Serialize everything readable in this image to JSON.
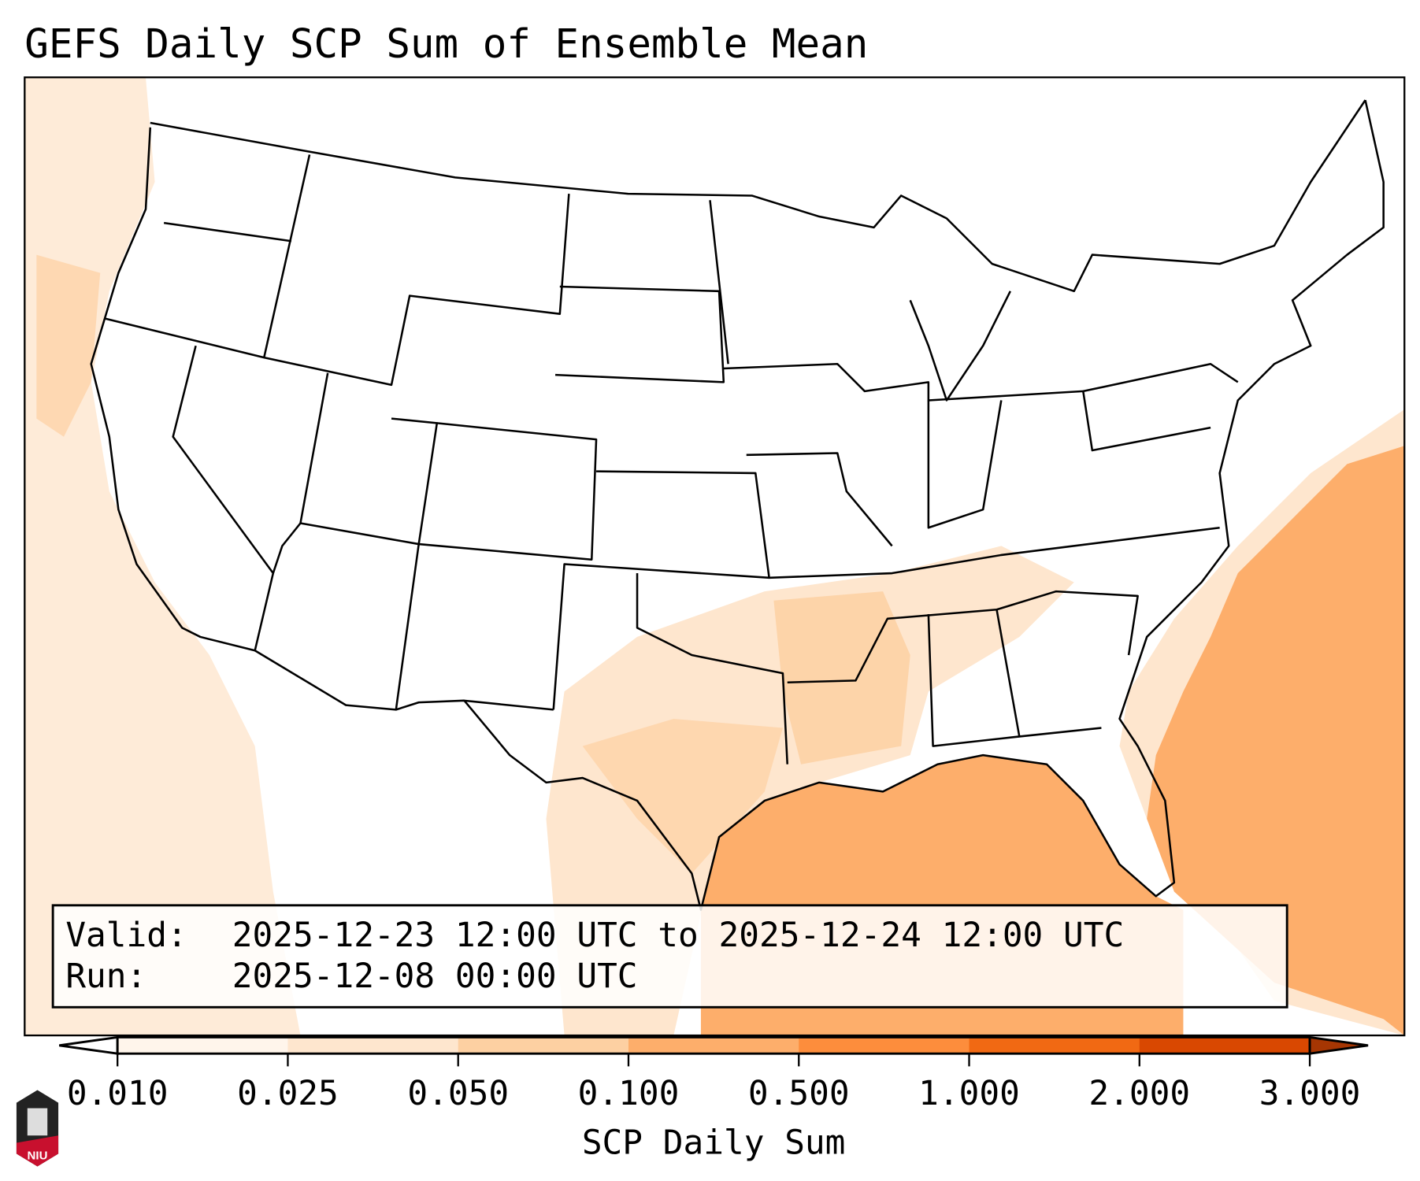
{
  "title": "GEFS Daily SCP Sum of Ensemble Mean",
  "info_box": {
    "valid_label": "Valid:",
    "valid_value": "2025-12-23 12:00 UTC to 2025-12-24 12:00 UTC",
    "run_label": "Run:",
    "run_value": "2025-12-08 00:00 UTC"
  },
  "colorbar": {
    "label": "SCP Daily Sum",
    "ticks": [
      "0.010",
      "0.025",
      "0.050",
      "0.100",
      "0.500",
      "1.000",
      "2.000",
      "3.000"
    ],
    "colors": [
      "#fff5eb",
      "#fee6ce",
      "#fdd0a2",
      "#fdae6b",
      "#fd8d3c",
      "#f16913",
      "#d94801"
    ],
    "under_color": "#ffffff",
    "over_color": "#a63603"
  },
  "logo": {
    "text": "NIU"
  }
}
